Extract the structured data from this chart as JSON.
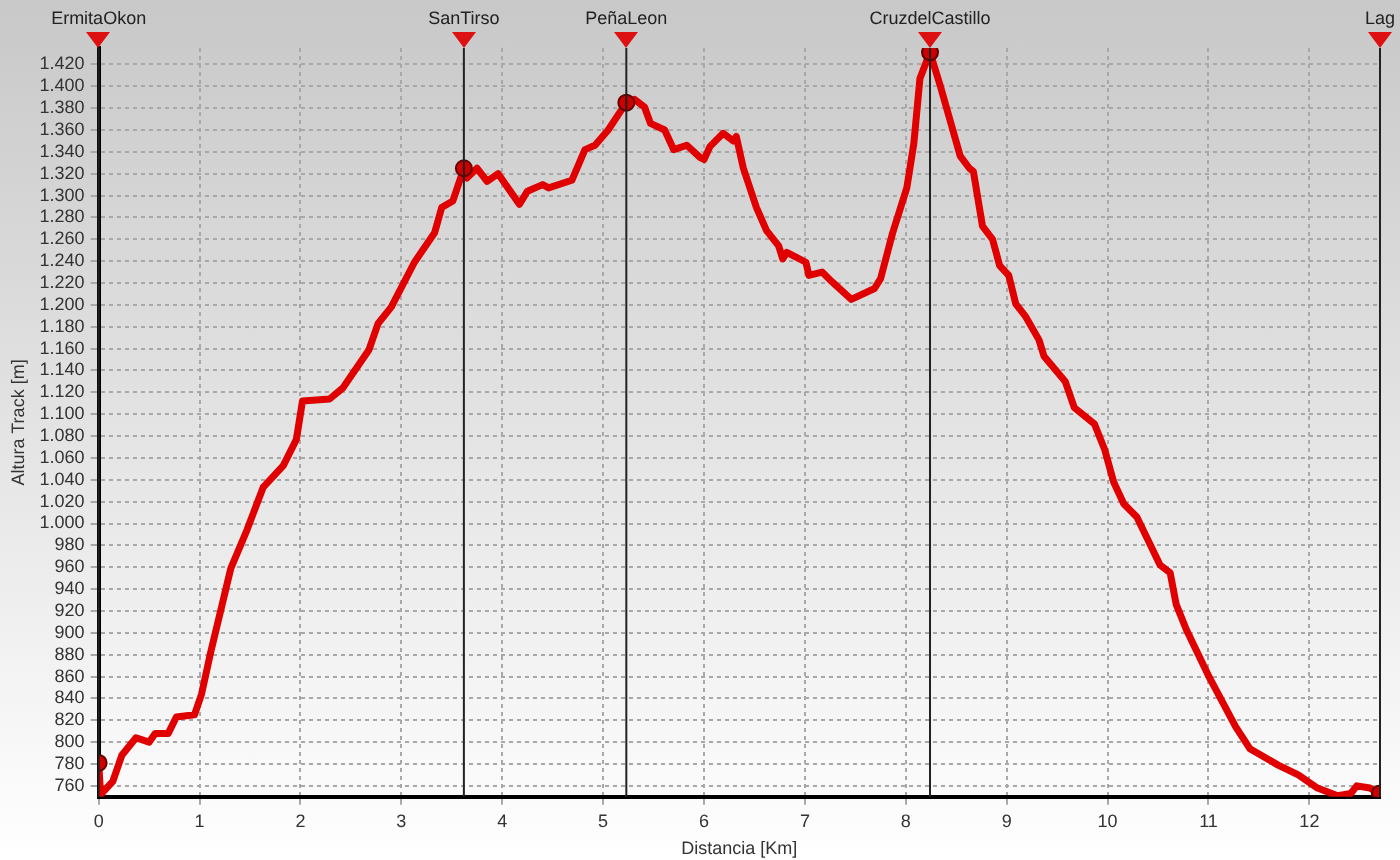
{
  "chart_data": {
    "type": "line",
    "xlabel": "Distancia [Km]",
    "ylabel": "Altura Track [m]",
    "xlim": [
      0,
      12.7
    ],
    "xticks": [
      0,
      1,
      2,
      3,
      4,
      5,
      6,
      7,
      8,
      9,
      10,
      11,
      12
    ],
    "ylim": [
      750,
      1435
    ],
    "yticks": [
      {
        "value": 760,
        "label": "760"
      },
      {
        "value": 780,
        "label": "780"
      },
      {
        "value": 800,
        "label": "800"
      },
      {
        "value": 820,
        "label": "820"
      },
      {
        "value": 840,
        "label": "840"
      },
      {
        "value": 860,
        "label": "860"
      },
      {
        "value": 880,
        "label": "880"
      },
      {
        "value": 900,
        "label": "900"
      },
      {
        "value": 920,
        "label": "920"
      },
      {
        "value": 940,
        "label": "940"
      },
      {
        "value": 960,
        "label": "960"
      },
      {
        "value": 980,
        "label": "980"
      },
      {
        "value": 1000,
        "label": "1.000"
      },
      {
        "value": 1020,
        "label": "1.020"
      },
      {
        "value": 1040,
        "label": "1.040"
      },
      {
        "value": 1060,
        "label": "1.060"
      },
      {
        "value": 1080,
        "label": "1.080"
      },
      {
        "value": 1100,
        "label": "1.100"
      },
      {
        "value": 1120,
        "label": "1.120"
      },
      {
        "value": 1140,
        "label": "1.140"
      },
      {
        "value": 1160,
        "label": "1.160"
      },
      {
        "value": 1180,
        "label": "1.180"
      },
      {
        "value": 1200,
        "label": "1.200"
      },
      {
        "value": 1220,
        "label": "1.220"
      },
      {
        "value": 1240,
        "label": "1.240"
      },
      {
        "value": 1260,
        "label": "1.260"
      },
      {
        "value": 1280,
        "label": "1.280"
      },
      {
        "value": 1300,
        "label": "1.300"
      },
      {
        "value": 1320,
        "label": "1.320"
      },
      {
        "value": 1340,
        "label": "1.340"
      },
      {
        "value": 1360,
        "label": "1.360"
      },
      {
        "value": 1380,
        "label": "1.380"
      },
      {
        "value": 1400,
        "label": "1.400"
      },
      {
        "value": 1420,
        "label": "1.420"
      }
    ],
    "grid": true,
    "legend": false,
    "ref_lines": [
      {
        "axis": "x",
        "value": 0,
        "label": "ErmitaOkon",
        "color": "#222222"
      },
      {
        "axis": "x",
        "value": 3.62,
        "label": "SanTirso",
        "color": "#222222"
      },
      {
        "axis": "x",
        "value": 5.23,
        "label": "PeñaLeon",
        "color": "#222222"
      },
      {
        "axis": "x",
        "value": 8.24,
        "label": "CruzdelCastillo",
        "color": "#222222"
      },
      {
        "axis": "x",
        "value": 12.7,
        "label": "Lag",
        "color": "#222222"
      }
    ],
    "series": [
      {
        "color": "#e00000",
        "marker": "none",
        "line_style": "solid",
        "x": [
          0,
          0.02,
          0.14,
          0.23,
          0.37,
          0.5,
          0.56,
          0.69,
          0.77,
          0.95,
          1.02,
          1.11,
          1.31,
          1.47,
          1.63,
          1.83,
          1.96,
          2.02,
          2.29,
          2.42,
          2.68,
          2.77,
          2.9,
          3.13,
          3.33,
          3.4,
          3.51,
          3.62,
          3.65,
          3.75,
          3.85,
          3.96,
          4.17,
          4.25,
          4.4,
          4.46,
          4.69,
          4.82,
          4.92,
          5.05,
          5.23,
          5.31,
          5.41,
          5.47,
          5.61,
          5.7,
          5.83,
          5.96,
          6.0,
          6.06,
          6.19,
          6.29,
          6.32,
          6.39,
          6.52,
          6.62,
          6.74,
          6.78,
          6.82,
          7.01,
          7.04,
          7.17,
          7.27,
          7.46,
          7.69,
          7.75,
          7.87,
          8.01,
          8.08,
          8.14,
          8.24,
          8.34,
          8.54,
          8.63,
          8.67,
          8.76,
          8.86,
          8.93,
          9.02,
          9.09,
          9.19,
          9.32,
          9.37,
          9.58,
          9.67,
          9.87,
          9.97,
          10.06,
          10.16,
          10.29,
          10.52,
          10.62,
          10.68,
          10.78,
          11.01,
          11.27,
          11.41,
          11.69,
          11.89,
          12.08,
          12.28,
          12.41,
          12.47,
          12.6,
          12.69
        ],
        "values": [
          781,
          752,
          764,
          788,
          804,
          800,
          808,
          808,
          823,
          825,
          844,
          882,
          959,
          994,
          1033,
          1053,
          1077,
          1112,
          1114,
          1124,
          1159,
          1183,
          1198,
          1239,
          1266,
          1289,
          1295,
          1325,
          1316,
          1325,
          1313,
          1320,
          1292,
          1304,
          1310,
          1307,
          1314,
          1342,
          1346,
          1360,
          1385,
          1388,
          1381,
          1366,
          1360,
          1342,
          1346,
          1335,
          1333,
          1345,
          1357,
          1350,
          1354,
          1325,
          1289,
          1268,
          1254,
          1242,
          1248,
          1239,
          1227,
          1230,
          1221,
          1205,
          1215,
          1224,
          1266,
          1307,
          1348,
          1407,
          1431,
          1401,
          1336,
          1325,
          1322,
          1272,
          1260,
          1236,
          1227,
          1201,
          1189,
          1168,
          1153,
          1130,
          1106,
          1091,
          1068,
          1038,
          1018,
          1006,
          962,
          955,
          926,
          903,
          859,
          814,
          794,
          779,
          770,
          758,
          751,
          753,
          760,
          758,
          753
        ]
      },
      {
        "type": "scatter",
        "color": "#cc0000",
        "marker": "circle",
        "x": [
          0,
          3.62,
          5.23,
          8.24,
          12.7
        ],
        "values": [
          781,
          1325,
          1385,
          1431,
          753
        ]
      }
    ]
  }
}
